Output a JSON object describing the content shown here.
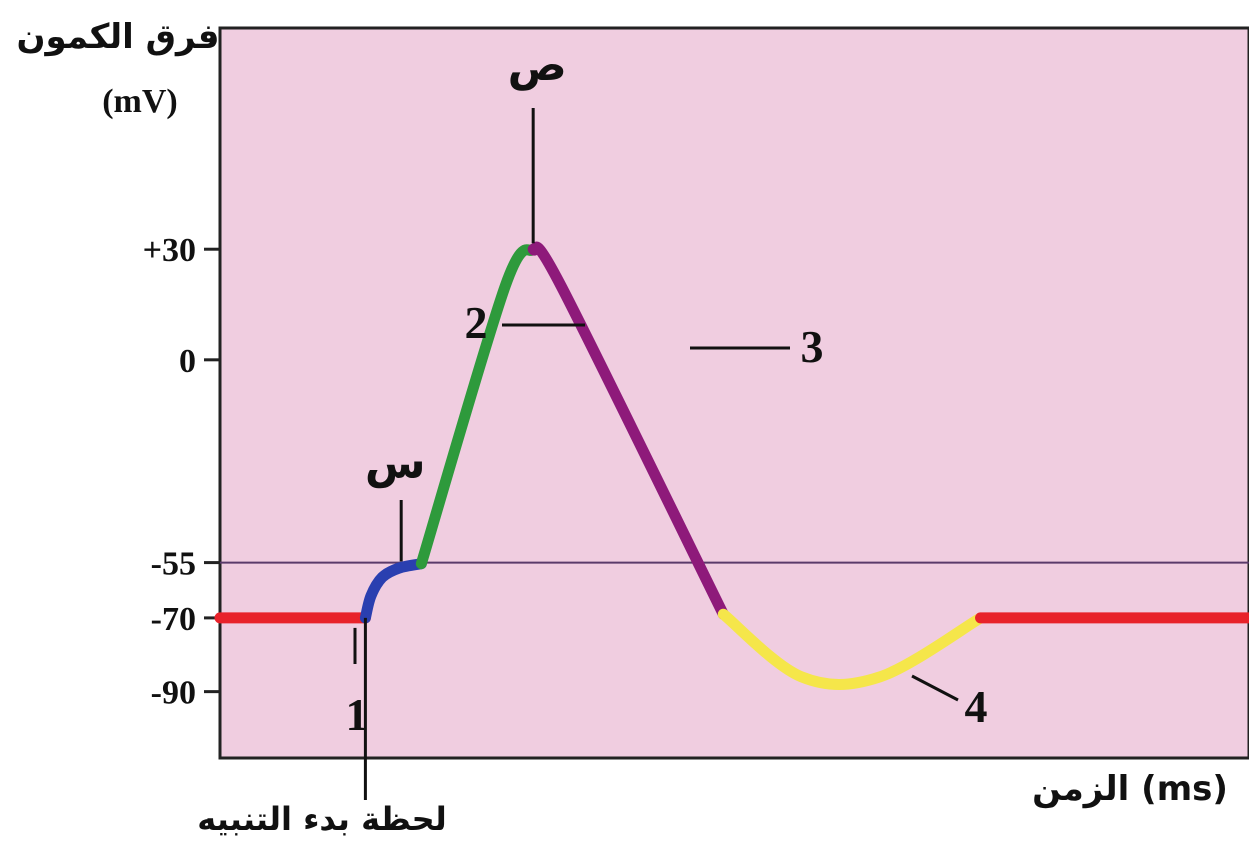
{
  "chart_data": {
    "type": "line",
    "y_axis_title": "فرق الكمون",
    "y_axis_unit": "(mV)",
    "x_axis_title": "الزمن (ms)",
    "y_ticks": [
      {
        "value": 30,
        "label": "+30"
      },
      {
        "value": 0,
        "label": "0"
      },
      {
        "value": -55,
        "label": "-55"
      },
      {
        "value": -70,
        "label": "-70"
      },
      {
        "value": -90,
        "label": "-90"
      }
    ],
    "threshold": -55,
    "stimulus_label": "لحظة بدء التنبيه",
    "peak_label": "ص",
    "threshold_point_label": "س",
    "phases": [
      {
        "id": "1",
        "label": "1",
        "color": "#e8222a",
        "points": [
          [
            0,
            -70
          ],
          [
            1.3,
            -70
          ]
        ]
      },
      {
        "id": "depol_start",
        "color": "#2a3fb0",
        "points": [
          [
            1.3,
            -70
          ],
          [
            1.35,
            -64
          ],
          [
            1.45,
            -59
          ],
          [
            1.6,
            -56.5
          ],
          [
            1.8,
            -55.3
          ]
        ]
      },
      {
        "id": "2",
        "label": "2",
        "color": "#2e9a3c",
        "points": [
          [
            1.8,
            -55.3
          ],
          [
            2.55,
            20
          ],
          [
            2.8,
            30
          ]
        ]
      },
      {
        "id": "3",
        "label": "3",
        "color": "#8e1a7a",
        "points": [
          [
            2.8,
            30
          ],
          [
            3.05,
            20
          ],
          [
            4.5,
            -69
          ]
        ]
      },
      {
        "id": "4",
        "label": "4",
        "color": "#f5e64a",
        "points": [
          [
            4.5,
            -69
          ],
          [
            5.2,
            -86
          ],
          [
            5.9,
            -86
          ],
          [
            6.8,
            -70
          ]
        ]
      },
      {
        "id": "1_end",
        "color": "#e8222a",
        "points": [
          [
            6.8,
            -70
          ],
          [
            9.2,
            -70
          ]
        ]
      }
    ],
    "xlim": [
      0,
      9.2
    ],
    "ylim": [
      -108,
      90
    ],
    "grid": false,
    "legend": "none"
  }
}
